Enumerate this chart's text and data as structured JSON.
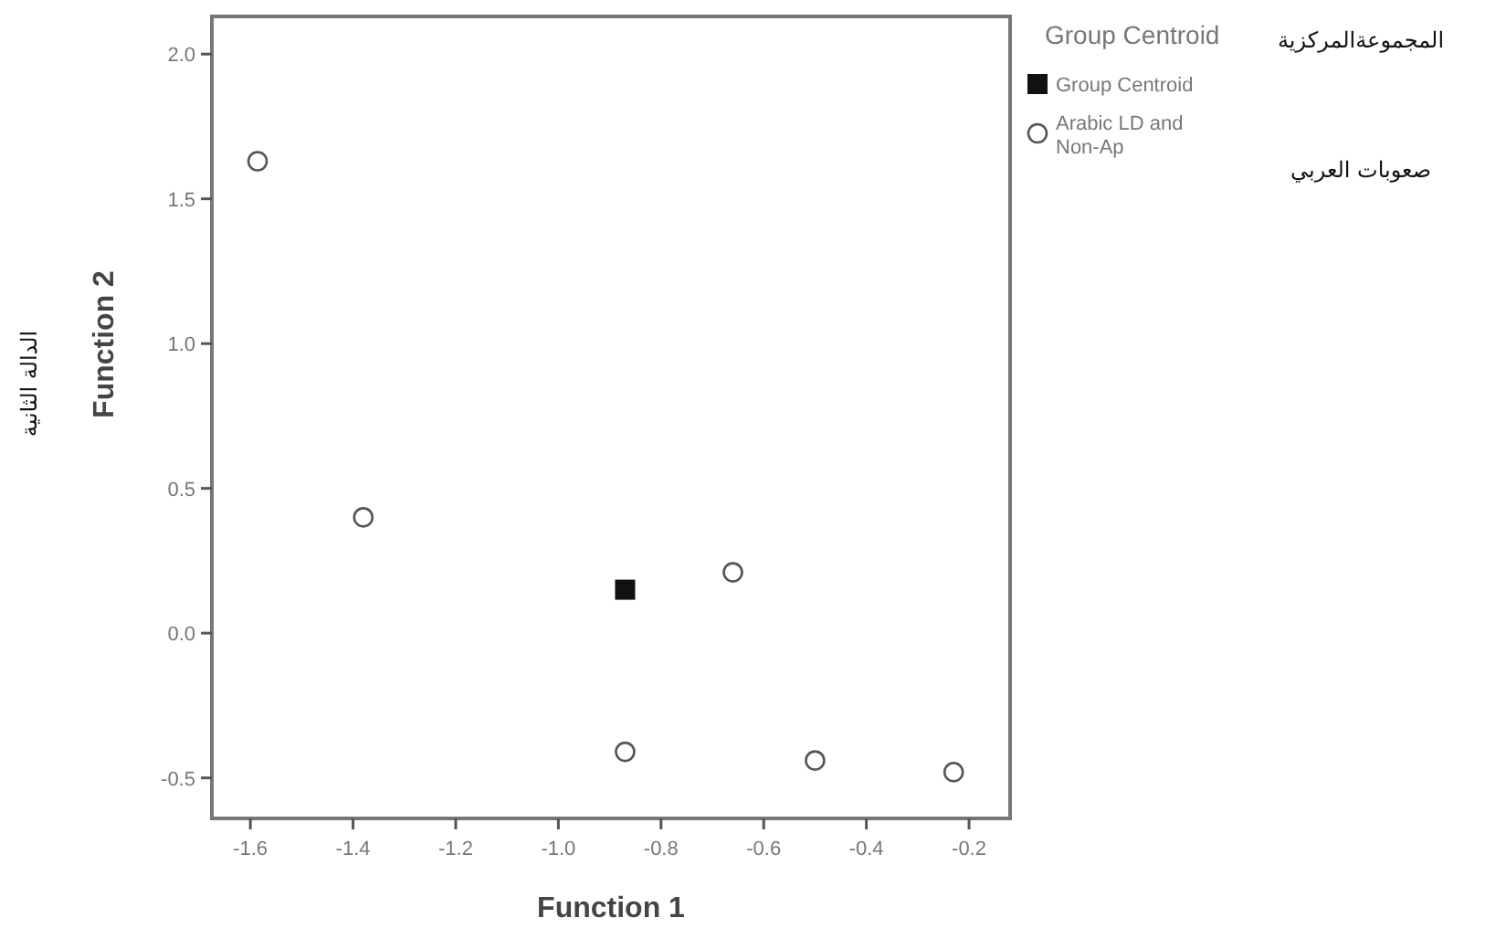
{
  "chart_data": {
    "type": "scatter",
    "xlabel": "Function 1",
    "ylabel": "Function 2",
    "legend_title": "Group Centroid",
    "xlim": [
      -1.675,
      -0.12
    ],
    "ylim": [
      -0.64,
      2.13
    ],
    "xticks": [
      -1.6,
      -1.4,
      -1.2,
      {
        "value": -1.0,
        "label": "-1.0"
      },
      -0.8,
      -0.6,
      -0.4,
      -0.2
    ],
    "yticks": [
      {
        "value": -0.5,
        "label": "-0.5"
      },
      {
        "value": 0.0,
        "label": "0.0"
      },
      0.5,
      {
        "value": 1.0,
        "label": "1.0"
      },
      1.5,
      {
        "value": 2.0,
        "label": "2.0"
      }
    ],
    "series": [
      {
        "name": "Group Centroid",
        "color": "#111111",
        "marker": "square",
        "x": [
          -0.87
        ],
        "values": [
          0.15
        ]
      },
      {
        "name": "Arabic LD and Non-Ap",
        "color": "#555555",
        "marker": "circle",
        "x": [
          -1.586,
          -1.38,
          -0.66,
          -0.87,
          -0.5,
          -0.23
        ],
        "values": [
          1.63,
          0.4,
          0.21,
          -0.41,
          -0.44,
          -0.48
        ]
      }
    ],
    "legend": "right",
    "grid": false,
    "annotations": [
      "المجموعةالمركزية",
      "صعوبات العربي",
      "الدالة الثانية"
    ]
  }
}
